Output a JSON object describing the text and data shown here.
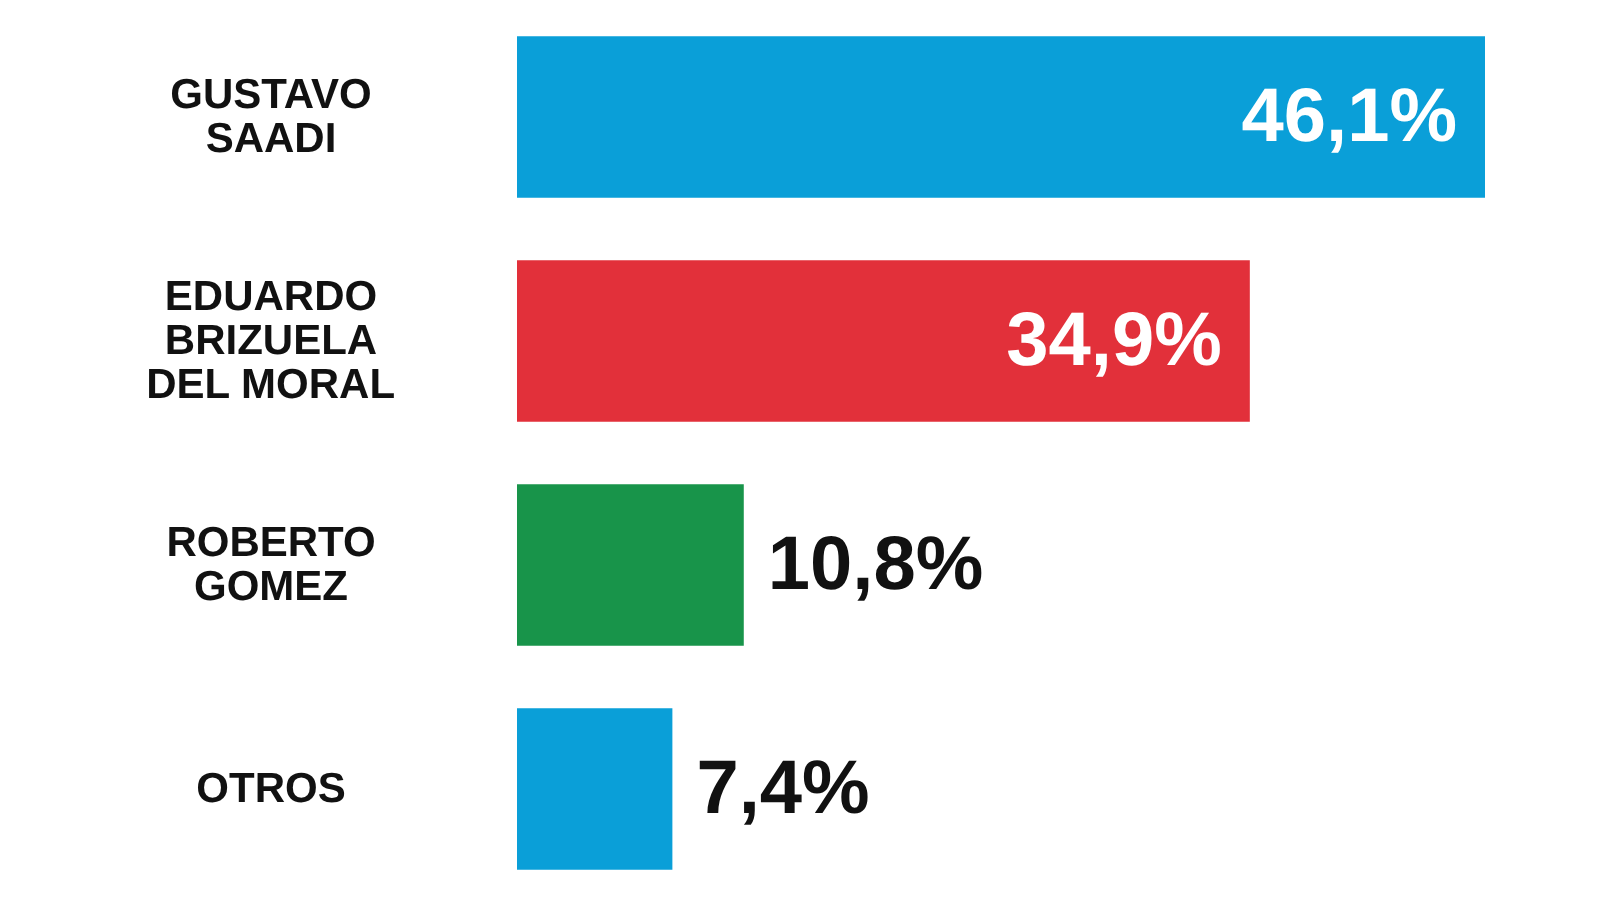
{
  "chart_data": {
    "type": "bar",
    "orientation": "horizontal",
    "categories": [
      "GUSTAVO\nSAADI",
      "EDUARDO\nBRIZUELA\nDEL MORAL",
      "ROBERTO\nGOMEZ",
      "OTROS"
    ],
    "values": [
      46.1,
      34.9,
      10.8,
      7.4
    ],
    "colors": [
      "#0a9fd8",
      "#e2303a",
      "#18944a",
      "#0a9fd8"
    ],
    "value_labels": [
      "46,1%",
      "34,9%",
      "10,8%",
      "7,4%"
    ]
  }
}
